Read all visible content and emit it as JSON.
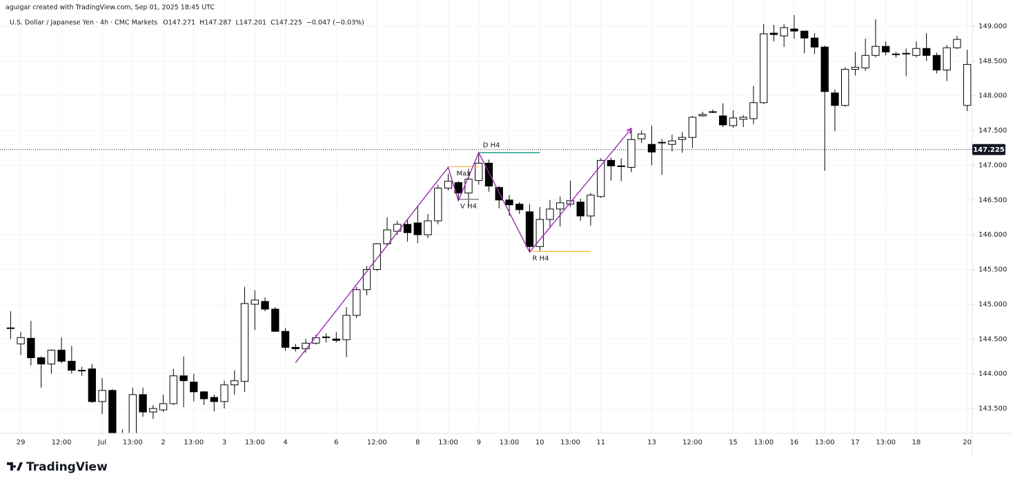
{
  "header": {
    "credit": "aguigar created with TradingView.com, Sep 01, 2025 18:45 UTC",
    "symbol": "U.S. Dollar / Japanese Yen · 4h · CMC Markets",
    "ohlc": [
      {
        "label": "O",
        "value": 147.271
      },
      {
        "label": "H",
        "value": 147.287
      },
      {
        "label": "L",
        "value": 147.201
      },
      {
        "label": "C",
        "value": 147.225
      }
    ],
    "change": "−0.047 (−0.03%)"
  },
  "footer": {
    "brand": "TradingView"
  },
  "chart_data": {
    "type": "candlestick",
    "up_color": "#ffffff",
    "down_color": "#000000",
    "outline_color": "#000000",
    "grid": true,
    "categories": [
      null,
      "29",
      null,
      null,
      null,
      "12:00",
      null,
      null,
      null,
      "Jul",
      null,
      null,
      "13:00",
      null,
      null,
      "2",
      null,
      null,
      "13:00",
      null,
      null,
      "3",
      null,
      null,
      "13:00",
      null,
      null,
      "4",
      null,
      null,
      null,
      null,
      "6",
      null,
      null,
      null,
      "12:00",
      null,
      null,
      null,
      "8",
      null,
      null,
      "13:00",
      null,
      null,
      "9",
      null,
      null,
      "13:00",
      null,
      null,
      "10",
      null,
      null,
      "13:00",
      null,
      null,
      "11",
      null,
      null,
      null,
      null,
      "13",
      null,
      null,
      null,
      "12:00",
      null,
      null,
      null,
      "15",
      null,
      null,
      "13:00",
      null,
      null,
      "16",
      null,
      null,
      "13:00",
      null,
      null,
      "17",
      null,
      null,
      "13:00",
      null,
      null,
      "18",
      null,
      null,
      null,
      null,
      "20"
    ],
    "open": [
      144.65,
      144.43,
      144.51,
      144.23,
      144.14,
      144.34,
      144.18,
      144.05,
      144.07,
      143.6,
      143.76,
      143.12,
      143.12,
      143.7,
      143.45,
      143.48,
      143.57,
      143.97,
      143.88,
      143.74,
      143.66,
      143.6,
      143.84,
      143.89,
      145.0,
      145.04,
      144.93,
      144.61,
      144.38,
      144.36,
      144.44,
      144.52,
      144.5,
      144.49,
      144.84,
      145.21,
      145.5,
      145.87,
      146.05,
      146.15,
      146.17,
      146.0,
      146.2,
      146.67,
      146.75,
      146.6,
      146.78,
      147.03,
      146.68,
      146.5,
      146.44,
      146.33,
      145.83,
      146.22,
      146.37,
      146.44,
      146.47,
      146.27,
      146.55,
      147.07,
      146.99,
      146.97,
      147.38,
      147.3,
      147.33,
      147.3,
      147.37,
      147.4,
      147.71,
      147.77,
      147.71,
      147.57,
      147.66,
      147.67,
      147.9,
      148.9,
      148.86,
      148.96,
      148.93,
      148.83,
      148.7,
      148.04,
      147.86,
      148.38,
      148.4,
      148.58,
      148.71,
      148.6,
      148.61,
      148.58,
      148.68,
      148.58,
      148.37,
      148.69,
      147.86
    ],
    "high": [
      144.9,
      144.6,
      144.76,
      144.25,
      144.35,
      144.52,
      144.4,
      144.1,
      144.14,
      143.94,
      143.78,
      143.2,
      143.8,
      143.8,
      143.55,
      143.7,
      144.07,
      144.25,
      144.0,
      143.75,
      143.7,
      143.9,
      144.05,
      145.25,
      145.2,
      145.1,
      144.96,
      144.66,
      144.43,
      144.5,
      144.56,
      144.58,
      144.6,
      144.96,
      145.25,
      145.55,
      145.88,
      146.25,
      146.2,
      146.22,
      146.42,
      146.3,
      146.72,
      146.88,
      146.77,
      146.95,
      147.19,
      147.08,
      146.7,
      146.57,
      146.47,
      146.44,
      146.4,
      146.5,
      146.55,
      146.78,
      146.52,
      146.6,
      147.1,
      147.11,
      147.1,
      147.5,
      147.5,
      147.57,
      147.38,
      147.44,
      147.48,
      147.71,
      147.77,
      147.8,
      147.89,
      147.79,
      147.72,
      148.14,
      149.03,
      149.02,
      149.03,
      149.16,
      148.93,
      148.9,
      148.72,
      148.09,
      148.41,
      148.63,
      148.82,
      149.1,
      148.78,
      148.63,
      148.68,
      148.78,
      148.9,
      148.62,
      148.73,
      148.86,
      148.66
    ],
    "low": [
      144.5,
      144.27,
      144.12,
      143.8,
      144.0,
      144.15,
      144.0,
      143.97,
      143.58,
      143.42,
      143.05,
      143.0,
      143.1,
      143.38,
      143.35,
      143.45,
      143.55,
      143.52,
      143.6,
      143.55,
      143.46,
      143.5,
      143.7,
      143.74,
      144.63,
      144.9,
      144.6,
      144.33,
      144.32,
      144.3,
      144.42,
      144.45,
      144.45,
      144.24,
      144.8,
      145.13,
      145.48,
      145.85,
      146.0,
      145.9,
      145.88,
      145.95,
      146.15,
      146.64,
      146.5,
      146.42,
      146.72,
      146.62,
      146.38,
      146.27,
      146.3,
      145.76,
      145.77,
      146.1,
      146.12,
      146.4,
      146.2,
      146.13,
      146.53,
      146.78,
      146.77,
      146.9,
      147.32,
      147.0,
      146.86,
      147.2,
      147.18,
      147.25,
      147.7,
      147.75,
      147.55,
      147.54,
      147.55,
      147.59,
      147.88,
      148.78,
      148.7,
      148.82,
      148.61,
      148.6,
      146.92,
      147.49,
      147.84,
      148.29,
      148.36,
      148.55,
      148.58,
      148.55,
      148.28,
      148.55,
      148.5,
      148.32,
      148.21,
      148.67,
      147.78
    ],
    "close": [
      144.66,
      144.52,
      144.23,
      144.14,
      144.34,
      144.18,
      144.05,
      144.04,
      143.6,
      143.76,
      143.1,
      143.13,
      143.7,
      143.45,
      143.5,
      143.57,
      143.97,
      143.9,
      143.74,
      143.64,
      143.6,
      143.84,
      143.9,
      145.01,
      145.06,
      144.93,
      144.61,
      144.38,
      144.36,
      144.44,
      144.52,
      144.53,
      144.48,
      144.84,
      145.21,
      145.5,
      145.87,
      146.07,
      146.15,
      146.03,
      146.0,
      146.2,
      146.67,
      146.77,
      146.6,
      146.8,
      147.03,
      146.7,
      146.5,
      146.43,
      146.36,
      145.83,
      146.22,
      146.37,
      146.46,
      146.49,
      146.27,
      146.57,
      147.07,
      146.99,
      146.98,
      147.37,
      147.45,
      147.19,
      147.32,
      147.35,
      147.4,
      147.69,
      147.73,
      147.77,
      147.58,
      147.68,
      147.69,
      147.9,
      148.89,
      148.88,
      148.98,
      148.93,
      148.83,
      148.7,
      148.06,
      147.86,
      148.38,
      148.41,
      148.58,
      148.71,
      148.63,
      148.59,
      148.6,
      148.68,
      148.58,
      148.37,
      148.69,
      148.81,
      148.45
    ],
    "ylim": [
      143.143,
      149.377
    ],
    "yticks": [
      {
        "value": 143.5,
        "label": "143.500"
      },
      {
        "value": 144.0,
        "label": "144.000"
      },
      {
        "value": 144.5,
        "label": "144.500"
      },
      {
        "value": 145.0,
        "label": "145.000"
      },
      {
        "value": 145.5,
        "label": "145.500"
      },
      {
        "value": 146.0,
        "label": "146.000"
      },
      {
        "value": 146.5,
        "label": "146.500"
      },
      {
        "value": 147.0,
        "label": "147.000"
      },
      {
        "value": 147.5,
        "label": "147.500"
      },
      {
        "value": 148.0,
        "label": "148.000"
      },
      {
        "value": 148.5,
        "label": "148.500"
      },
      {
        "value": 149.0,
        "label": "149.000"
      }
    ],
    "current_price": {
      "value": 147.225,
      "label": "147.225"
    },
    "zigzag": {
      "color": "#9c27b0",
      "x": [
        28,
        43,
        44,
        46,
        51,
        61
      ],
      "values": [
        144.16,
        146.97,
        146.49,
        147.18,
        145.75,
        147.53
      ]
    },
    "levels": [
      {
        "label": "Max",
        "value": 146.98,
        "from": 43,
        "to": 46,
        "color": "#ffb74d",
        "label_color": "#f23645"
      },
      {
        "label": "V H4",
        "value": 146.51,
        "from": 44,
        "to": 46,
        "color": "#787b86",
        "label_color": "#787b86"
      },
      {
        "label": "D H4",
        "value": 147.18,
        "from": 46,
        "to": 52,
        "color": "#089981",
        "label_color": "#089981"
      },
      {
        "label": "R H4",
        "value": 145.76,
        "from": 51,
        "to": 57,
        "color": "#fbc02d",
        "label_color": "#ff9800"
      }
    ]
  }
}
